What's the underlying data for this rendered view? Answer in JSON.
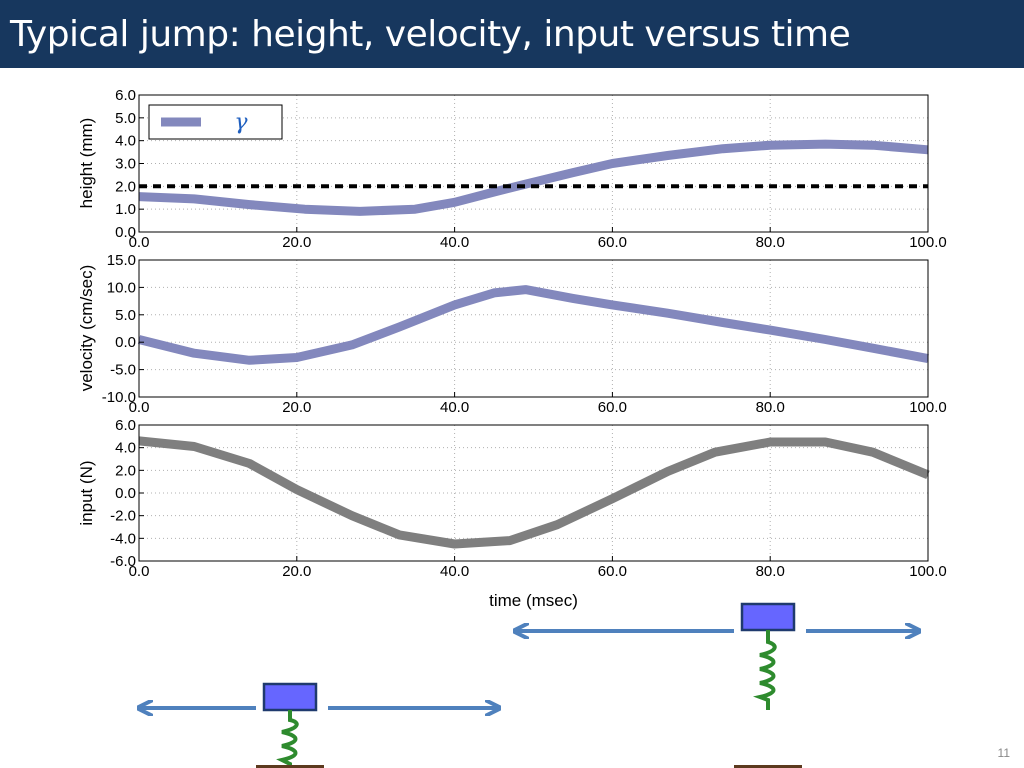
{
  "slide": {
    "title": "Typical jump: height, velocity, input versus time",
    "number": "11",
    "colors": {
      "title_bar": "#17375e",
      "series_blue": "#8388bd",
      "series_gray": "#7f7f7f",
      "arrow": "#4f81bd",
      "block": "#6666ff",
      "spring": "#2e8b2e",
      "ground": "#5c3a1e"
    }
  },
  "chart_data": [
    {
      "type": "line",
      "ylabel": "height (mm)",
      "xlabel": "",
      "xlim": [
        0,
        100
      ],
      "ylim": [
        0,
        6
      ],
      "x_ticks": [
        "0.0",
        "20.0",
        "40.0",
        "60.0",
        "80.0",
        "100.0"
      ],
      "y_ticks": [
        "0.0",
        "1.0",
        "2.0",
        "3.0",
        "4.0",
        "5.0",
        "6.0"
      ],
      "grid": true,
      "legend": {
        "placement": "top-left",
        "entries": [
          "γ"
        ]
      },
      "series": [
        {
          "name": "γ",
          "color": "#8388bd",
          "x": [
            0,
            7,
            14,
            21,
            28,
            35,
            40,
            45,
            49,
            55,
            60,
            67,
            74,
            80,
            87,
            93,
            100
          ],
          "y": [
            1.55,
            1.45,
            1.2,
            1.0,
            0.9,
            1.0,
            1.3,
            1.75,
            2.1,
            2.6,
            3.0,
            3.35,
            3.65,
            3.8,
            3.85,
            3.8,
            3.6
          ]
        },
        {
          "name": "",
          "style": "dashed",
          "color": "#000000",
          "x": [
            0,
            100
          ],
          "y": [
            2.0,
            2.0
          ]
        }
      ]
    },
    {
      "type": "line",
      "ylabel": "velocity (cm/sec)",
      "xlabel": "",
      "xlim": [
        0,
        100
      ],
      "ylim": [
        -10,
        15
      ],
      "x_ticks": [
        "0.0",
        "20.0",
        "40.0",
        "60.0",
        "80.0",
        "100.0"
      ],
      "y_ticks": [
        "-10.0",
        "-5.0",
        "0.0",
        "5.0",
        "10.0",
        "15.0"
      ],
      "grid": true,
      "series": [
        {
          "name": "",
          "color": "#8388bd",
          "x": [
            0,
            7,
            14,
            20,
            27,
            33,
            40,
            45,
            49,
            55,
            60,
            67,
            74,
            80,
            87,
            93,
            100
          ],
          "y": [
            0.5,
            -2.0,
            -3.3,
            -2.8,
            -0.5,
            2.8,
            6.8,
            9.0,
            9.6,
            8.0,
            6.8,
            5.3,
            3.6,
            2.2,
            0.5,
            -1.1,
            -3.0
          ]
        }
      ]
    },
    {
      "type": "line",
      "ylabel": "input (N)",
      "xlabel": "time (msec)",
      "xlim": [
        0,
        100
      ],
      "ylim": [
        -6,
        6
      ],
      "x_ticks": [
        "0.0",
        "20.0",
        "40.0",
        "60.0",
        "80.0",
        "100.0"
      ],
      "y_ticks": [
        "-6.0",
        "-4.0",
        "-2.0",
        "0.0",
        "2.0",
        "4.0",
        "6.0"
      ],
      "grid": true,
      "series": [
        {
          "name": "",
          "color": "#7f7f7f",
          "x": [
            0,
            7,
            14,
            20,
            27,
            33,
            40,
            47,
            53,
            60,
            67,
            73,
            80,
            87,
            93,
            100
          ],
          "y": [
            4.6,
            4.1,
            2.6,
            0.3,
            -2.0,
            -3.7,
            -4.5,
            -4.2,
            -2.8,
            -0.5,
            1.9,
            3.6,
            4.5,
            4.5,
            3.6,
            1.6
          ]
        }
      ]
    }
  ],
  "illustrations": [
    {
      "id": "jumper-left",
      "icon": "spring-mass-icon"
    },
    {
      "id": "jumper-right",
      "icon": "spring-mass-icon"
    }
  ]
}
